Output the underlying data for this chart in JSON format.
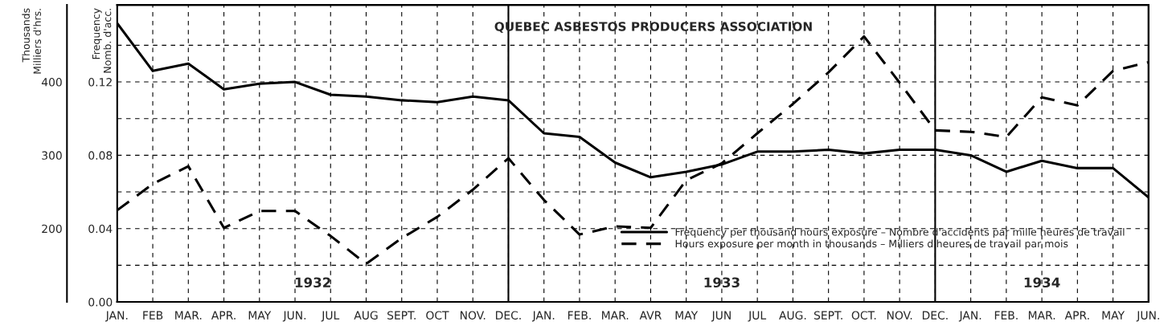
{
  "chart_data": {
    "type": "line",
    "title": "QUEBEC ASBESTOS PRODUCERS ASSOCIATION",
    "ylabel": "Frequency\nNomb. d'acc.",
    "y2label": "Thousands\nMilliers d'hrs.",
    "categories": [
      "JAN.",
      "FEB",
      "MAR.",
      "APR.",
      "MAY",
      "JUN.",
      "JUL",
      "AUG",
      "SEPT.",
      "OCT",
      "NOV.",
      "DEC.",
      "JAN.",
      "FEB.",
      "MAR.",
      "AVR",
      "MAY",
      "JUN",
      "JUL",
      "AUG.",
      "SEPT.",
      "OCT.",
      "NOV.",
      "DEC.",
      "JAN.",
      "FEB.",
      "MAR.",
      "APR.",
      "MAY",
      "JUN."
    ],
    "series": [
      {
        "name": "Frequency per thousand hours exposure – Nombre d'accidents par mille heures de travail",
        "color": "#000000",
        "line_style": "solid",
        "values": [
          0.152,
          0.126,
          0.13,
          0.116,
          0.119,
          0.12,
          0.113,
          0.112,
          0.11,
          0.109,
          0.112,
          0.11,
          0.092,
          0.09,
          0.076,
          0.068,
          0.071,
          0.075,
          0.082,
          0.082,
          0.083,
          0.081,
          0.083,
          0.083,
          0.08,
          0.071,
          0.077,
          0.073,
          0.073,
          0.057
        ]
      },
      {
        "name": "Hours exposure per month in thousands – Milliers d'heures de travail par mois",
        "color": "#000000",
        "line_style": "dashed",
        "axis": "y2",
        "values": [
          225,
          261,
          285,
          201,
          224,
          224,
          190,
          152,
          187,
          216,
          253,
          296,
          239,
          192,
          203,
          201,
          266,
          289,
          330,
          370,
          413,
          462,
          399,
          334,
          332,
          325,
          379,
          368,
          415,
          427
        ]
      }
    ],
    "ylim": [
      0,
      0.162
    ],
    "yticks": [
      {
        "value": 0,
        "label": "0.00"
      },
      {
        "value": 0.04,
        "label": "0.04"
      },
      0.08,
      0.12
    ],
    "y2lim": [
      100,
      505
    ],
    "y2ticks": [
      {
        "value": 150,
        "label": null
      },
      200,
      {
        "value": 250,
        "label": null
      },
      300,
      {
        "value": 350,
        "label": null
      },
      400,
      {
        "value": 450,
        "label": null
      }
    ],
    "annotations": [
      "1932",
      "1933",
      "1934"
    ],
    "grid": true,
    "legend": "bottom right",
    "marker": "none"
  }
}
